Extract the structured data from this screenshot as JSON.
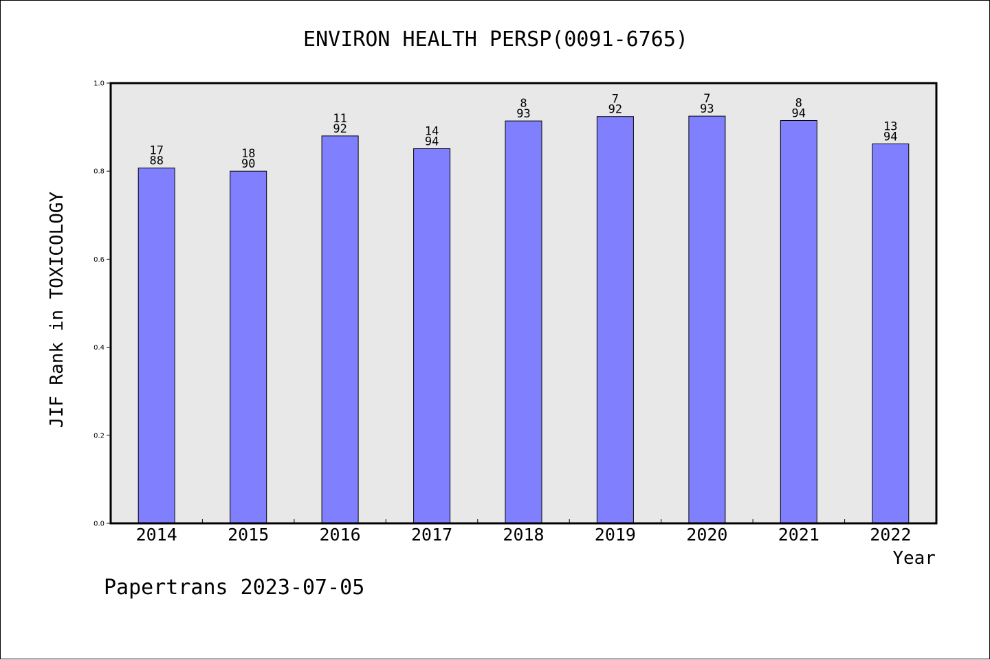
{
  "chart_data": {
    "type": "bar",
    "title": "ENVIRON HEALTH PERSP(0091-6765)",
    "xlabel": "Year",
    "ylabel": "JIF Rank in TOXICOLOGY",
    "ylim": [
      0,
      1.0
    ],
    "yticks": [
      "0.0",
      "0.2",
      "0.4",
      "0.6",
      "0.8",
      "1.0"
    ],
    "categories": [
      "2014",
      "2015",
      "2016",
      "2017",
      "2018",
      "2019",
      "2020",
      "2021",
      "2022"
    ],
    "values": [
      0.807,
      0.8,
      0.88,
      0.851,
      0.914,
      0.924,
      0.925,
      0.915,
      0.862
    ],
    "labels_top": [
      "17",
      "18",
      "11",
      "14",
      "8",
      "7",
      "7",
      "8",
      "13"
    ],
    "labels_bottom": [
      "88",
      "90",
      "92",
      "94",
      "93",
      "92",
      "93",
      "94",
      "94"
    ],
    "grid": false,
    "colors": {
      "bar_fill": "#8080ff",
      "bar_stroke": "#000000",
      "plot_background": "#e8e8e8"
    }
  },
  "footer": "Papertrans 2023-07-05"
}
